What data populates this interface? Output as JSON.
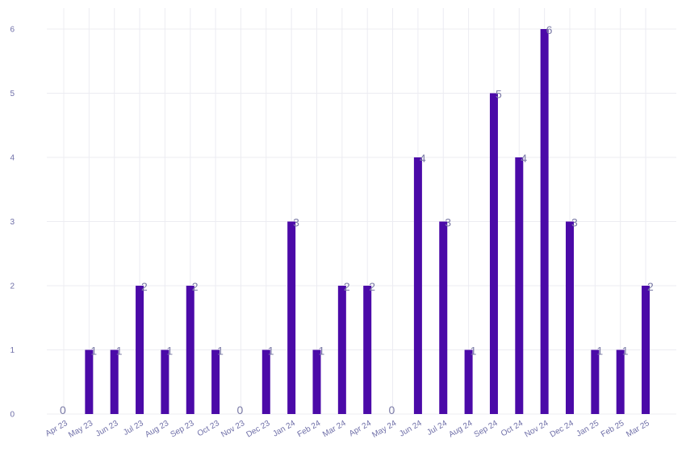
{
  "chart_data": {
    "type": "bar",
    "title": "",
    "xlabel": "",
    "ylabel": "",
    "categories": [
      "Apr 23",
      "May 23",
      "Jun 23",
      "Jul 23",
      "Aug 23",
      "Sep 23",
      "Oct 23",
      "Nov 23",
      "Dec 23",
      "Jan 24",
      "Feb 24",
      "Mar 24",
      "Apr 24",
      "May 24",
      "Jun 24",
      "Jul 24",
      "Aug 24",
      "Sep 24",
      "Oct 24",
      "Nov 24",
      "Dec 24",
      "Jan 25",
      "Feb 25",
      "Mar 25"
    ],
    "values": [
      0,
      1,
      1,
      2,
      1,
      2,
      1,
      0,
      1,
      3,
      1,
      2,
      2,
      0,
      4,
      3,
      1,
      5,
      4,
      6,
      3,
      1,
      1,
      2
    ],
    "ylim": [
      0,
      6
    ],
    "yticks": [
      0,
      1,
      2,
      3,
      4,
      5,
      6
    ],
    "grid": true,
    "data_labels": true,
    "bar_color": "#4b0aa8",
    "label_color": "#7a7aa6",
    "tick_color": "#6f6fa8"
  }
}
